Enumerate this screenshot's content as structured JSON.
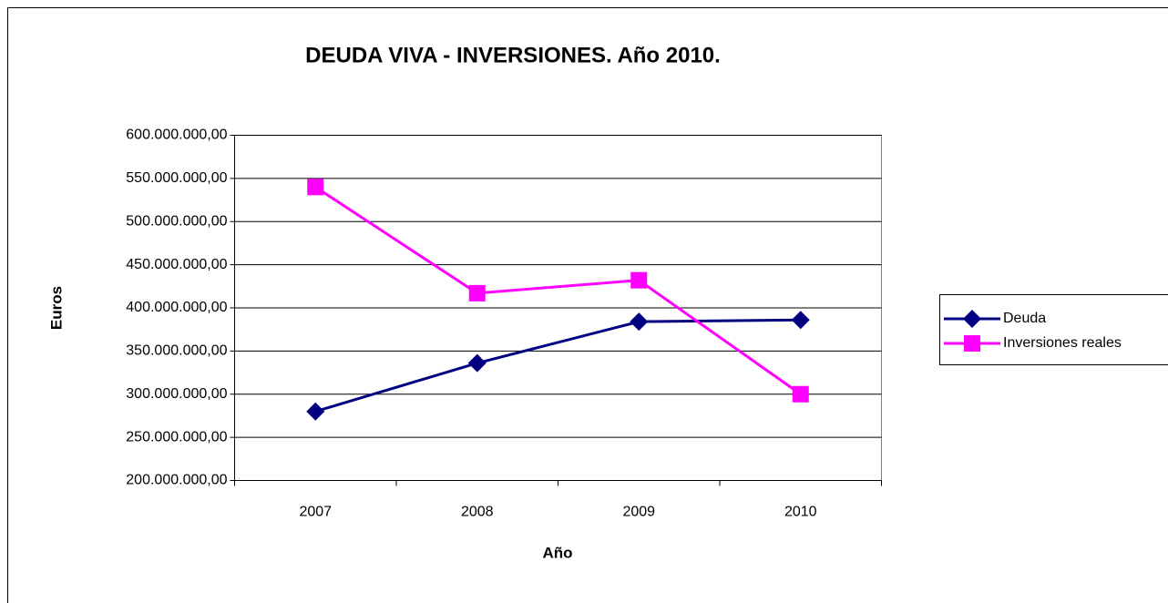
{
  "chart_data": {
    "type": "line",
    "title": "DEUDA VIVA  -  INVERSIONES. Año 2010.",
    "x_label": "Año",
    "y_label": "Euros",
    "categories": [
      "2007",
      "2008",
      "2009",
      "2010"
    ],
    "series": [
      {
        "name": "Deuda",
        "color": "#000080",
        "marker": "diamond",
        "values": [
          280000000,
          336000000,
          384000000,
          386000000
        ]
      },
      {
        "name": "Inversiones reales",
        "color": "#ff00ff",
        "marker": "square",
        "values": [
          540000000,
          417000000,
          432000000,
          300000000
        ]
      }
    ],
    "ylim": [
      200000000,
      600000000
    ],
    "yticks": [
      {
        "value": 200000000,
        "label": "200.000.000,00"
      },
      {
        "value": 250000000,
        "label": "250.000.000,00"
      },
      {
        "value": 300000000,
        "label": "300.000.000,00"
      },
      {
        "value": 350000000,
        "label": "350.000.000,00"
      },
      {
        "value": 400000000,
        "label": "400.000.000,00"
      },
      {
        "value": 450000000,
        "label": "450.000.000,00"
      },
      {
        "value": 500000000,
        "label": "500.000.000,00"
      },
      {
        "value": 550000000,
        "label": "550.000.000,00"
      },
      {
        "value": 600000000,
        "label": "600.000.000,00"
      }
    ],
    "grid": true,
    "legend": "right"
  }
}
